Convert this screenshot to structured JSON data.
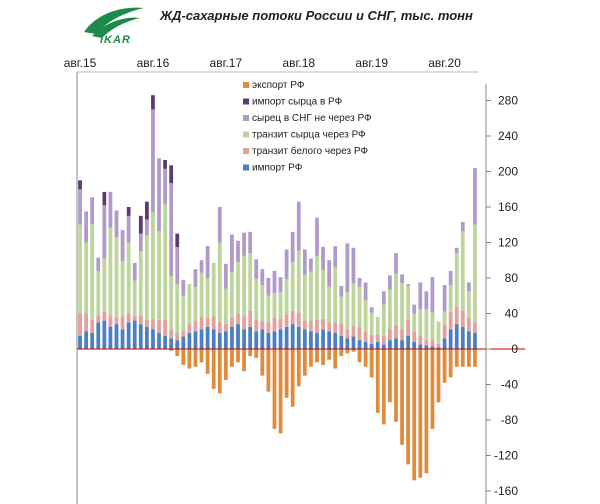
{
  "title": "ЖД-сахарные потоки России и СНГ, тыс. тонн",
  "logo": {
    "text": "IKAR",
    "icon": "ikar-wing-logo"
  },
  "colors": {
    "export": "#e08a3c",
    "raw_import": "#5b3a6e",
    "raw_cis": "#b09ac9",
    "raw_transit": "#bcd59a",
    "white_transit": "#e3a09c",
    "import": "#4a7fc4",
    "zero_line": "#cc0000",
    "axis": "#888888"
  },
  "chart_data": {
    "type": "bar",
    "stacked": true,
    "title": "ЖД-сахарные потоки России и СНГ, тыс. тонн",
    "x_tick_labels": [
      {
        "label": "авг.15",
        "index": 0
      },
      {
        "label": "авг.16",
        "index": 12
      },
      {
        "label": "авг.17",
        "index": 24
      },
      {
        "label": "авг.18",
        "index": 36
      },
      {
        "label": "авг.19",
        "index": 48
      },
      {
        "label": "авг.20",
        "index": 60
      }
    ],
    "ylim": [
      -160,
      300
    ],
    "yticks": [
      -160,
      -120,
      -80,
      -40,
      0,
      40,
      80,
      120,
      160,
      200,
      240,
      280
    ],
    "grid": false,
    "legend_position": "top-center",
    "series": [
      {
        "key": "import",
        "name": "импорт РФ",
        "values": [
          15,
          20,
          18,
          30,
          32,
          25,
          28,
          22,
          30,
          32,
          28,
          25,
          22,
          18,
          15,
          12,
          10,
          14,
          18,
          20,
          22,
          25,
          22,
          18,
          20,
          25,
          28,
          22,
          25,
          20,
          22,
          18,
          20,
          22,
          25,
          28,
          25,
          22,
          20,
          18,
          22,
          20,
          18,
          15,
          12,
          14,
          10,
          8,
          6,
          8,
          5,
          10,
          12,
          10,
          15,
          8,
          5,
          4,
          3,
          2,
          12,
          22,
          28,
          25,
          20,
          18
        ]
      },
      {
        "key": "white_transit",
        "name": "транзит белого через РФ",
        "values": [
          25,
          20,
          15,
          8,
          10,
          12,
          8,
          15,
          10,
          5,
          10,
          8,
          12,
          15,
          18,
          10,
          8,
          6,
          10,
          12,
          14,
          10,
          15,
          12,
          8,
          10,
          12,
          15,
          18,
          14,
          10,
          12,
          15,
          12,
          14,
          15,
          16,
          10,
          12,
          15,
          12,
          10,
          12,
          14,
          10,
          12,
          15,
          12,
          10,
          8,
          10,
          12,
          15,
          12,
          18,
          12,
          10,
          6,
          8,
          4,
          15,
          20,
          20,
          18,
          15,
          12
        ]
      },
      {
        "key": "raw_transit",
        "name": "транзит сырца через РФ",
        "values": [
          100,
          80,
          108,
          50,
          60,
          100,
          90,
          62,
          80,
          40,
          72,
          95,
          120,
          100,
          130,
          60,
          55,
          40,
          45,
          38,
          50,
          45,
          60,
          90,
          40,
          52,
          58,
          68,
          65,
          45,
          40,
          30,
          28,
          30,
          40,
          55,
          70,
          52,
          55,
          72,
          55,
          40,
          62,
          30,
          42,
          48,
          45,
          35,
          25,
          20,
          35,
          45,
          58,
          52,
          38,
          20,
          30,
          35,
          30,
          25,
          15,
          30,
          60,
          90,
          30,
          110
        ]
      },
      {
        "key": "raw_cis",
        "name": "сырец в СНГ не через РФ",
        "values": [
          40,
          35,
          30,
          15,
          60,
          40,
          30,
          35,
          30,
          20,
          20,
          18,
          116,
          82,
          40,
          105,
          42,
          18,
          0,
          20,
          14,
          36,
          0,
          40,
          28,
          42,
          24,
          26,
          24,
          22,
          18,
          20,
          25,
          17,
          33,
          34,
          55,
          28,
          15,
          43,
          26,
          30,
          24,
          12,
          55,
          40,
          10,
          20,
          6,
          0,
          15,
          16,
          23,
          10,
          2,
          10,
          30,
          20,
          40,
          0,
          30,
          16,
          6,
          10,
          10,
          64
        ]
      },
      {
        "key": "raw_import",
        "name": "импорт сырца в РФ",
        "values": [
          10,
          0,
          0,
          0,
          15,
          0,
          0,
          0,
          10,
          0,
          20,
          20,
          16,
          0,
          10,
          20,
          15,
          0,
          0,
          0,
          0,
          0,
          0,
          0,
          0,
          0,
          0,
          0,
          0,
          0,
          0,
          0,
          0,
          0,
          0,
          0,
          0,
          0,
          0,
          0,
          0,
          0,
          0,
          0,
          0,
          0,
          0,
          0,
          0,
          0,
          0,
          0,
          0,
          0,
          0,
          0,
          0,
          0,
          0,
          0,
          0,
          0,
          0,
          0,
          0,
          0
        ]
      },
      {
        "key": "export",
        "name": "экспорт РФ",
        "values": [
          0,
          0,
          0,
          0,
          0,
          0,
          0,
          0,
          0,
          0,
          0,
          0,
          0,
          0,
          0,
          -2,
          -8,
          -18,
          -22,
          -20,
          -15,
          -28,
          -45,
          -50,
          -35,
          -20,
          -15,
          -25,
          -8,
          -10,
          -30,
          -48,
          -90,
          -95,
          -55,
          -65,
          -42,
          -30,
          -20,
          -15,
          -18,
          -12,
          -22,
          -8,
          -5,
          -3,
          -15,
          -20,
          -32,
          -72,
          -85,
          -60,
          -82,
          -108,
          -130,
          -148,
          -145,
          -140,
          -90,
          -60,
          -38,
          -32,
          -20,
          -20,
          -20,
          -20
        ]
      }
    ]
  }
}
